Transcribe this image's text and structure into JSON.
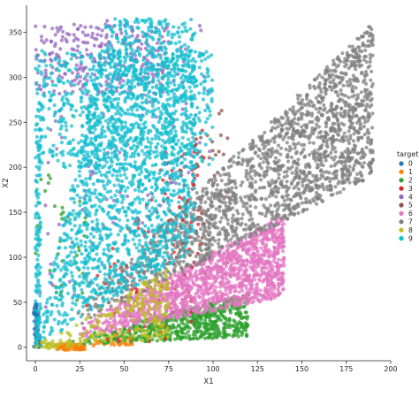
{
  "chart_data": {
    "type": "scatter",
    "title": "",
    "xlabel": "X1",
    "ylabel": "X2",
    "xlim": [
      -5,
      200
    ],
    "ylim": [
      -15,
      380
    ],
    "xticks": [
      0,
      25,
      50,
      75,
      100,
      125,
      150,
      175,
      200
    ],
    "yticks": [
      0,
      50,
      100,
      150,
      200,
      250,
      300,
      350
    ],
    "grid": false,
    "legend": {
      "title": "target",
      "position": "right"
    },
    "series": [
      {
        "name": "0",
        "color": "#1f77b4",
        "regions": [
          {
            "shape": "edge",
            "x": [
              -1,
              2
            ],
            "y": [
              0,
              50
            ],
            "n": 60
          },
          {
            "shape": "box",
            "x": [
              0,
              3
            ],
            "y": [
              0,
              15
            ],
            "n": 30
          }
        ]
      },
      {
        "name": "1",
        "color": "#ff7f0e",
        "regions": [
          {
            "shape": "box",
            "x": [
              10,
              28
            ],
            "y": [
              -3,
              4
            ],
            "n": 90
          },
          {
            "shape": "wedge",
            "x": [
              15,
              55
            ],
            "slope": [
              0.05,
              0.25
            ],
            "n": 40
          }
        ]
      },
      {
        "name": "2",
        "color": "#2ca02c",
        "regions": [
          {
            "shape": "wedge",
            "x": [
              20,
              120
            ],
            "slope": [
              0.1,
              0.5
            ],
            "n": 600
          },
          {
            "shape": "box",
            "x": [
              0,
              30
            ],
            "y": [
              50,
              200
            ],
            "n": 40
          }
        ]
      },
      {
        "name": "3",
        "color": "#d62728",
        "regions": [
          {
            "shape": "wedge",
            "x": [
              20,
              95
            ],
            "slope": [
              0.1,
              2.6
            ],
            "n": 120
          },
          {
            "shape": "box",
            "x": [
              70,
              95
            ],
            "y": [
              130,
              220
            ],
            "n": 40
          }
        ]
      },
      {
        "name": "4",
        "color": "#9467bd",
        "regions": [
          {
            "shape": "wedge",
            "x": [
              0,
              100
            ],
            "slope": [
              2.2,
              30
            ],
            "n": 700
          },
          {
            "shape": "box",
            "x": [
              0,
              75
            ],
            "y": [
              280,
              360
            ],
            "n": 250
          }
        ]
      },
      {
        "name": "5",
        "color": "#8c564b",
        "regions": [
          {
            "shape": "wedge",
            "x": [
              60,
              110
            ],
            "slope": [
              0.8,
              2.6
            ],
            "n": 40
          }
        ]
      },
      {
        "name": "6",
        "color": "#e377c2",
        "regions": [
          {
            "shape": "wedge",
            "x": [
              20,
              140
            ],
            "slope": [
              0.4,
              1.05
            ],
            "n": 1400
          }
        ]
      },
      {
        "name": "7",
        "color": "#7f7f7f",
        "regions": [
          {
            "shape": "wedge",
            "x": [
              20,
              190
            ],
            "slope": [
              1.0,
              1.9
            ],
            "n": 1800
          }
        ]
      },
      {
        "name": "8",
        "color": "#bcbd22",
        "regions": [
          {
            "shape": "wedge",
            "x": [
              10,
              75
            ],
            "slope": [
              0.1,
              1.2
            ],
            "n": 200
          },
          {
            "shape": "box",
            "x": [
              0,
              20
            ],
            "y": [
              -2,
              8
            ],
            "n": 40
          }
        ]
      },
      {
        "name": "9",
        "color": "#17becf",
        "regions": [
          {
            "shape": "wedge",
            "x": [
              2,
              90
            ],
            "slope": [
              1.2,
              9
            ],
            "n": 2600
          },
          {
            "shape": "box",
            "x": [
              0,
              100
            ],
            "y": [
              200,
              330
            ],
            "n": 700
          },
          {
            "shape": "edge",
            "x": [
              0,
              3
            ],
            "y": [
              0,
              250
            ],
            "n": 120
          }
        ]
      }
    ]
  }
}
